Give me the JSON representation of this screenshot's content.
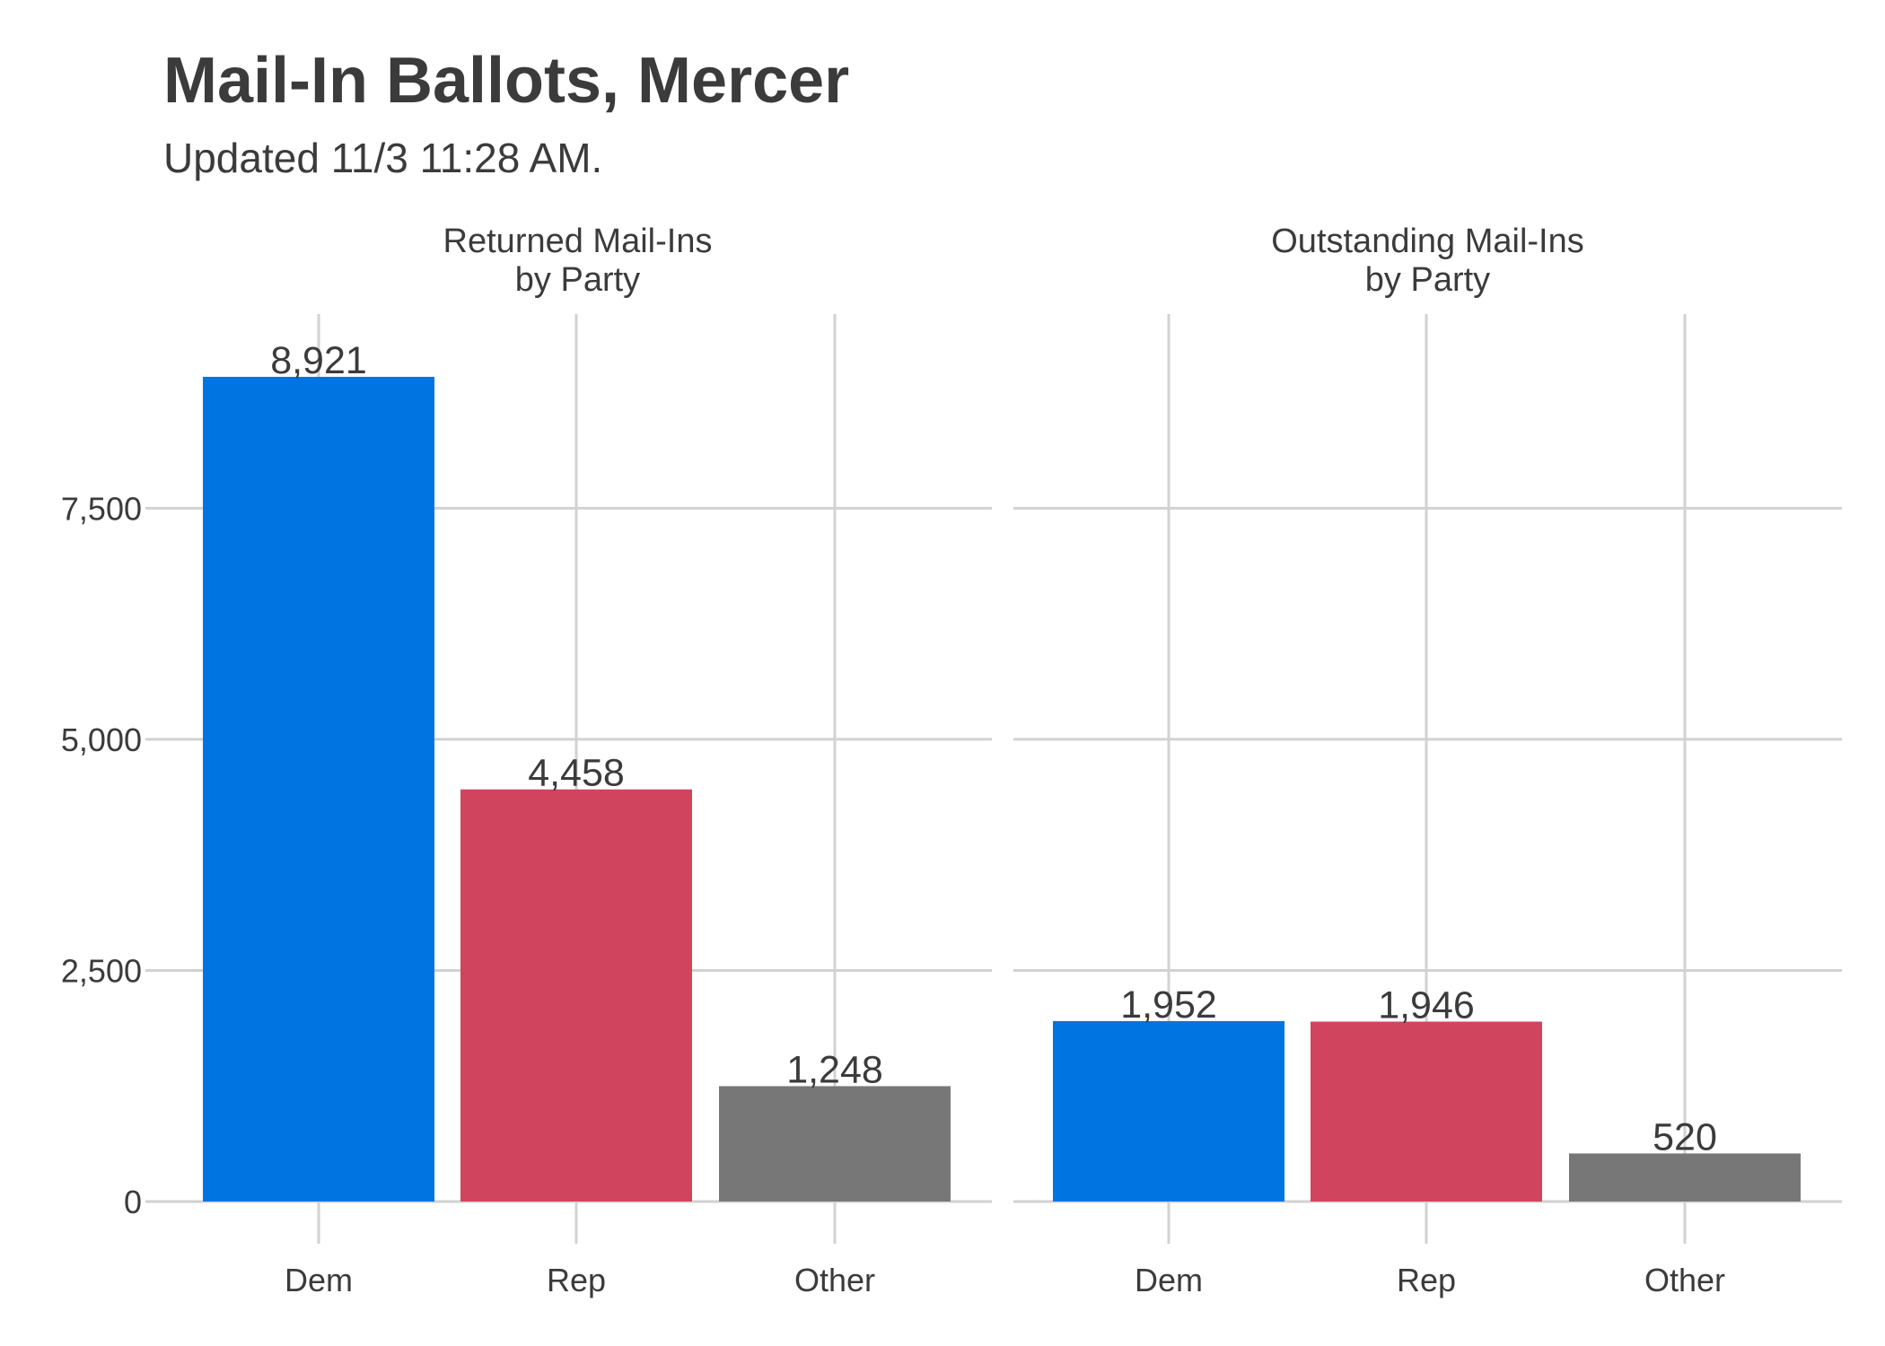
{
  "chart_data": {
    "type": "bar",
    "title": "Mail-In Ballots, Mercer",
    "subtitle": "Updated 11/3 11:28 AM.",
    "categories": [
      "Dem",
      "Rep",
      "Other"
    ],
    "colors": {
      "Dem": "#0075e1",
      "Rep": "#d1445e",
      "Other": "#777777"
    },
    "ylim": [
      0,
      9600
    ],
    "yticks": [
      0,
      2500,
      5000,
      7500
    ],
    "ytick_labels": [
      "0",
      "2,500",
      "5,000",
      "7,500"
    ],
    "grid": true,
    "panels": [
      {
        "title_lines": [
          "Returned Mail-Ins",
          "by Party"
        ],
        "values": [
          8921,
          4458,
          1248
        ],
        "value_labels": [
          "8,921",
          "4,458",
          "1,248"
        ]
      },
      {
        "title_lines": [
          "Outstanding Mail-Ins",
          "by Party"
        ],
        "values": [
          1952,
          1946,
          520
        ],
        "value_labels": [
          "1,952",
          "1,946",
          "520"
        ]
      }
    ]
  }
}
